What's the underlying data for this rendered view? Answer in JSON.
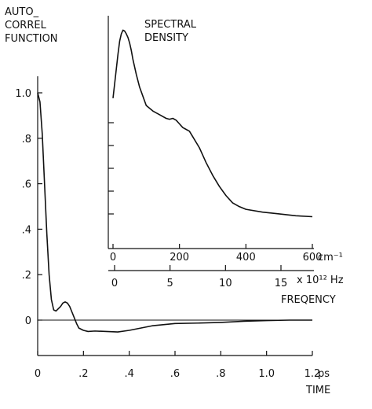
{
  "chart_data": [
    {
      "id": "main",
      "type": "line",
      "title": "",
      "ylabel_lines": [
        "AUTO_",
        "CORREL",
        "FUNCTION"
      ],
      "xlabel": "TIME",
      "x_unit": "ps",
      "xlim": [
        0,
        1.2
      ],
      "ylim": [
        -0.2,
        1.1
      ],
      "x_ticks": [
        0,
        0.2,
        0.4,
        0.6,
        0.8,
        1.0,
        1.2
      ],
      "x_tick_labels": [
        "0",
        ".2",
        ".4",
        ".6",
        ".8",
        "1.0",
        "1.2"
      ],
      "y_ticks": [
        0,
        0.2,
        0.4,
        0.6,
        0.8,
        1.0
      ],
      "y_tick_labels": [
        "0",
        ".2",
        ".4",
        ".6",
        ".8",
        "1.0"
      ],
      "zero_line": true,
      "grid": false,
      "series": [
        {
          "x": [
            0,
            0.01,
            0.02,
            0.03,
            0.04,
            0.05,
            0.06,
            0.07,
            0.08,
            0.09,
            0.1,
            0.11,
            0.12,
            0.13,
            0.14,
            0.15,
            0.16,
            0.17,
            0.18,
            0.2,
            0.22,
            0.25,
            0.3,
            0.35,
            0.4,
            0.45,
            0.5,
            0.6,
            0.7,
            0.8,
            0.9,
            1.0,
            1.1,
            1.2
          ],
          "y": [
            1.0,
            0.96,
            0.82,
            0.6,
            0.38,
            0.2,
            0.09,
            0.045,
            0.04,
            0.05,
            0.06,
            0.075,
            0.08,
            0.075,
            0.06,
            0.035,
            0.01,
            -0.015,
            -0.035,
            -0.045,
            -0.05,
            -0.048,
            -0.05,
            -0.052,
            -0.045,
            -0.035,
            -0.025,
            -0.015,
            -0.013,
            -0.01,
            -0.005,
            -0.002,
            0,
            0
          ]
        }
      ]
    },
    {
      "id": "inset",
      "type": "line",
      "title_lines": [
        "SPECTRAL",
        "DENSITY"
      ],
      "x_unit": "cm⁻¹",
      "xlim": [
        0,
        600
      ],
      "x_ticks": [
        0,
        200,
        400,
        600
      ],
      "x_tick_labels": [
        "0",
        "200",
        "400",
        "600"
      ],
      "secondary_axis": {
        "unit": "x 10¹² Hz",
        "label": "FREQENCY",
        "xlim": [
          0,
          18
        ],
        "ticks": [
          0,
          5,
          10,
          15
        ],
        "tick_labels": [
          "0",
          "5",
          "10",
          "15"
        ]
      },
      "ylim": [
        0,
        1.12
      ],
      "y_tick_count": 5,
      "y_tick_labels": [],
      "grid": false,
      "series": [
        {
          "x": [
            0,
            5,
            10,
            15,
            20,
            25,
            30,
            35,
            40,
            45,
            50,
            55,
            60,
            70,
            80,
            90,
            100,
            120,
            140,
            160,
            170,
            180,
            190,
            200,
            210,
            220,
            230,
            240,
            260,
            280,
            300,
            320,
            340,
            360,
            380,
            400,
            450,
            500,
            550,
            600
          ],
          "y": [
            0.69,
            0.77,
            0.85,
            0.93,
            1.0,
            1.04,
            1.06,
            1.055,
            1.04,
            1.02,
            0.99,
            0.95,
            0.9,
            0.82,
            0.75,
            0.7,
            0.65,
            0.62,
            0.6,
            0.58,
            0.575,
            0.58,
            0.57,
            0.55,
            0.53,
            0.52,
            0.51,
            0.48,
            0.42,
            0.34,
            0.27,
            0.21,
            0.16,
            0.12,
            0.1,
            0.085,
            0.07,
            0.06,
            0.05,
            0.045
          ]
        }
      ]
    }
  ]
}
